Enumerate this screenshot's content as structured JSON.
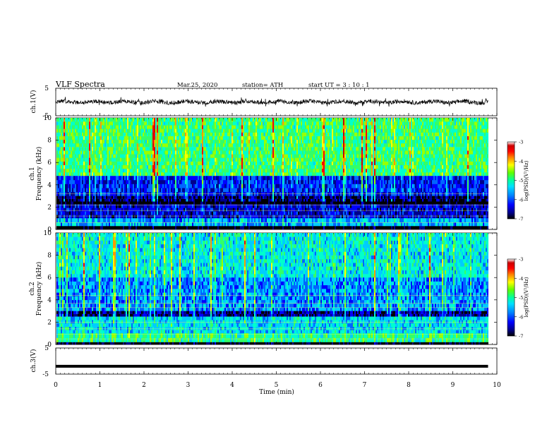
{
  "header": {
    "title": "VLF  Spectra",
    "date": "Mar.25, 2020",
    "station": "station= ATH",
    "start": "start  UT  =    3  : 10 : 1"
  },
  "chart_data": [
    {
      "type": "line",
      "name": "ch1-waveform",
      "ylabel": "ch.1(V)",
      "xlim": [
        0,
        10
      ],
      "ylim": [
        -5,
        5
      ],
      "yticks": [
        "5",
        "-5"
      ],
      "signal_extent_min": [
        0,
        9.8
      ],
      "baseline_v": 0,
      "noise_amplitude_v": 1.5
    },
    {
      "type": "heatmap",
      "name": "ch1-spectrogram",
      "ylabel": "ch.1\nFrequency  (kHz)",
      "ylim": [
        0,
        10
      ],
      "yticks": [
        "0",
        "2",
        "4",
        "6",
        "8",
        "10"
      ],
      "colorbar": {
        "label": "log(PSD)(V²/Hz)",
        "range": [
          -7,
          -3
        ],
        "ticks": [
          "-3",
          "-4",
          "-5",
          "-6",
          "-7"
        ]
      },
      "bands_khz": [
        {
          "from": 4.8,
          "to": 10,
          "level": -4.9
        },
        {
          "from": 3.0,
          "to": 4.8,
          "level": -6.1
        },
        {
          "from": 2.5,
          "to": 3.0,
          "level": -6.6
        },
        {
          "from": 2.25,
          "to": 2.5,
          "level": -7
        },
        {
          "from": 1.0,
          "to": 2.25,
          "level": -6.3
        },
        {
          "from": 0.3,
          "to": 1.0,
          "level": -5.6
        },
        {
          "from": 0,
          "to": 0.3,
          "level": -7
        }
      ]
    },
    {
      "type": "heatmap",
      "name": "ch2-spectrogram",
      "ylabel": "ch.2\nFrequency  (kHz)",
      "ylim": [
        0,
        10
      ],
      "yticks": [
        "0",
        "2",
        "4",
        "6",
        "8",
        "10"
      ],
      "colorbar": {
        "label": "log(PSD)(V²/Hz)",
        "range": [
          -7,
          -3
        ],
        "ticks": [
          "-3",
          "-4",
          "-5",
          "-6",
          "-7"
        ]
      },
      "bands_khz": [
        {
          "from": 6.0,
          "to": 10,
          "level": -5.3
        },
        {
          "from": 3.0,
          "to": 6.0,
          "level": -5.7
        },
        {
          "from": 2.5,
          "to": 3.0,
          "level": -6.5
        },
        {
          "from": 1.0,
          "to": 2.5,
          "level": -5.4
        },
        {
          "from": 0.2,
          "to": 1.0,
          "level": -5.0
        },
        {
          "from": 0,
          "to": 0.2,
          "level": -6.9
        }
      ]
    },
    {
      "type": "line",
      "name": "ch3-waveform",
      "ylabel": "ch.3(V)",
      "xlim": [
        0,
        10
      ],
      "ylim": [
        -5,
        5
      ],
      "yticks": [
        "5",
        "-5"
      ],
      "signal_extent_min": [
        0,
        9.8
      ],
      "baseline_v": -2.0
    }
  ],
  "xaxis": {
    "label": "Time  (min)",
    "ticks": [
      "0",
      "1",
      "2",
      "3",
      "4",
      "5",
      "6",
      "7",
      "8",
      "9",
      "10"
    ]
  },
  "colormap": [
    "#000000",
    "#00008b",
    "#0000ff",
    "#0066ff",
    "#00ccff",
    "#00ffcc",
    "#33ff66",
    "#99ff00",
    "#ffff00",
    "#ff9900",
    "#ff0000",
    "#cc0000",
    "#ffffff"
  ]
}
